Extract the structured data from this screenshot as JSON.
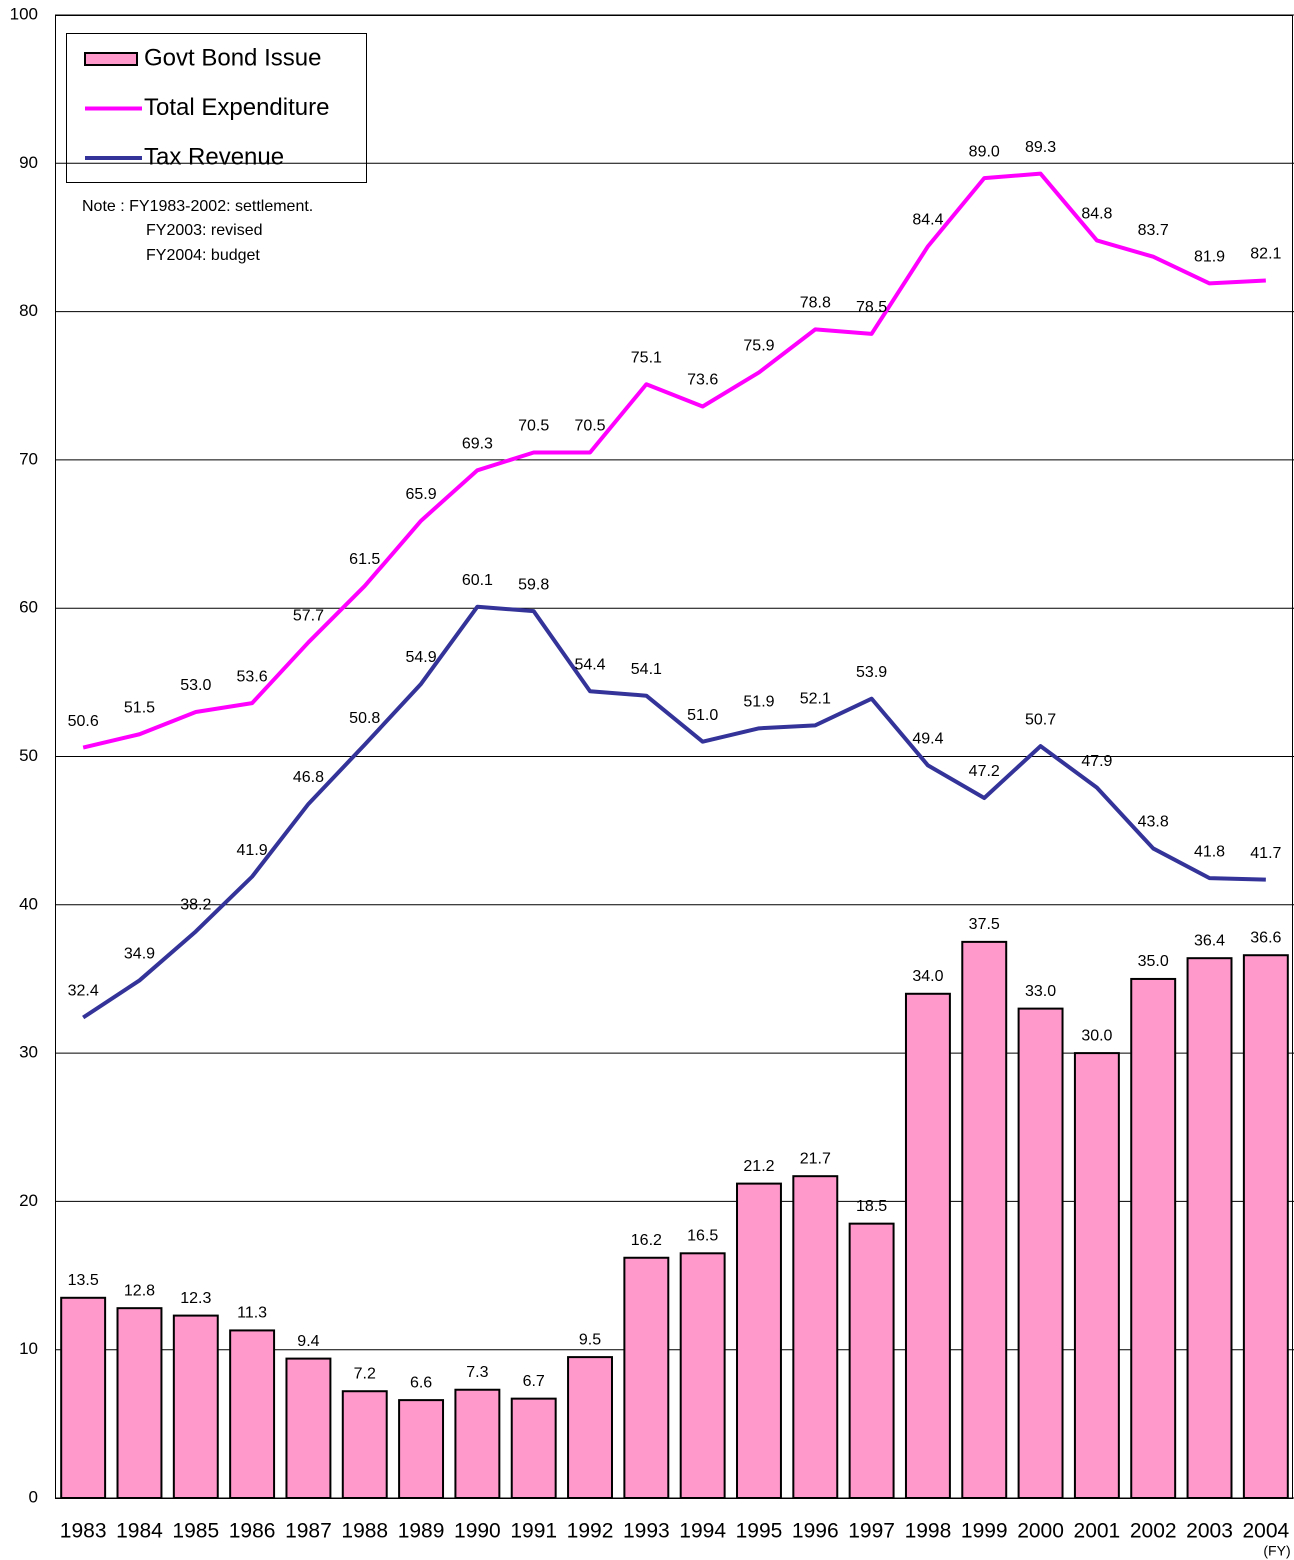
{
  "chart_data": {
    "type": "bar",
    "x_label": "(FY)",
    "annotations": [
      "Note : FY1983-2002: settlement.",
      "FY2003: revised",
      "FY2004: budget"
    ],
    "categories": [
      "1983",
      "1984",
      "1985",
      "1986",
      "1987",
      "1988",
      "1989",
      "1990",
      "1991",
      "1992",
      "1993",
      "1994",
      "1995",
      "1996",
      "1997",
      "1998",
      "1999",
      "2000",
      "2001",
      "2002",
      "2003",
      "2004"
    ],
    "series": [
      {
        "name": "Govt Bond Issue",
        "type": "bar",
        "color": "#ff99cc",
        "values": [
          13.5,
          12.8,
          12.3,
          11.3,
          9.4,
          7.2,
          6.6,
          7.3,
          6.7,
          9.5,
          16.2,
          16.5,
          21.2,
          21.7,
          18.5,
          34.0,
          37.5,
          33.0,
          30.0,
          35.0,
          36.4,
          36.6
        ],
        "value_labels": [
          "13.5",
          "12.8",
          "12.3",
          "11.3",
          "9.4",
          "7.2",
          "6.6",
          "7.3",
          "6.7",
          "9.5",
          "16.2",
          "16.5",
          "21.2",
          "21.7",
          "18.5",
          "34.0",
          "37.5",
          "33.0",
          "30.0",
          "35.0",
          "36.4",
          "36.6"
        ]
      },
      {
        "name": "Total Expenditure",
        "type": "line",
        "color": "#ff00ff",
        "values": [
          50.6,
          51.5,
          53.0,
          53.6,
          57.7,
          61.5,
          65.9,
          69.3,
          70.5,
          70.5,
          75.1,
          73.6,
          75.9,
          78.8,
          78.5,
          84.4,
          89.0,
          89.3,
          84.8,
          83.7,
          81.9,
          82.1
        ],
        "value_labels": [
          "50.6",
          "51.5",
          "53.0",
          "53.6",
          "57.7",
          "61.5",
          "65.9",
          "69.3",
          "70.5",
          "70.5",
          "75.1",
          "73.6",
          "75.9",
          "78.8",
          "78.5",
          "84.4",
          "89.0",
          "89.3",
          "84.8",
          "83.7",
          "81.9",
          "82.1"
        ]
      },
      {
        "name": "Tax Revenue",
        "type": "line",
        "color": "#333399",
        "values": [
          32.4,
          34.9,
          38.2,
          41.9,
          46.8,
          50.8,
          54.9,
          60.1,
          59.8,
          54.4,
          54.1,
          51.0,
          51.9,
          52.1,
          53.9,
          49.4,
          47.2,
          50.7,
          47.9,
          43.8,
          41.8,
          41.7
        ],
        "value_labels": [
          "32.4",
          "34.9",
          "38.2",
          "41.9",
          "46.8",
          "50.8",
          "54.9",
          "60.1",
          "59.8",
          "54.4",
          "54.1",
          "51.0",
          "51.9",
          "52.1",
          "53.9",
          "49.4",
          "47.2",
          "50.7",
          "47.9",
          "43.8",
          "41.8",
          "41.7"
        ]
      }
    ],
    "ylim": [
      0,
      100
    ],
    "yticks": [
      0,
      10,
      20,
      30,
      40,
      50,
      60,
      70,
      80,
      90,
      100
    ],
    "grid": true
  }
}
